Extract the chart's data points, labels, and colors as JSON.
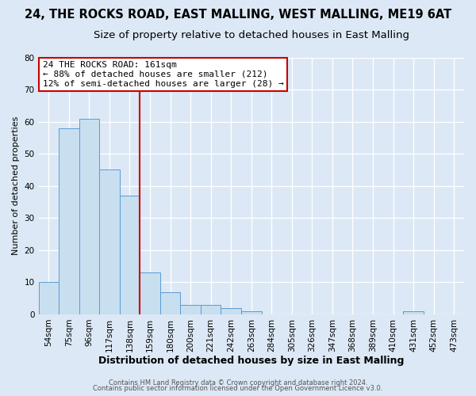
{
  "title": "24, THE ROCKS ROAD, EAST MALLING, WEST MALLING, ME19 6AT",
  "subtitle": "Size of property relative to detached houses in East Malling",
  "xlabel": "Distribution of detached houses by size in East Malling",
  "ylabel": "Number of detached properties",
  "footnote1": "Contains HM Land Registry data © Crown copyright and database right 2024.",
  "footnote2": "Contains public sector information licensed under the Open Government Licence v3.0.",
  "bin_labels": [
    "54sqm",
    "75sqm",
    "96sqm",
    "117sqm",
    "138sqm",
    "159sqm",
    "180sqm",
    "200sqm",
    "221sqm",
    "242sqm",
    "263sqm",
    "284sqm",
    "305sqm",
    "326sqm",
    "347sqm",
    "368sqm",
    "389sqm",
    "410sqm",
    "431sqm",
    "452sqm",
    "473sqm"
  ],
  "bar_heights": [
    10,
    58,
    61,
    45,
    37,
    13,
    7,
    3,
    3,
    2,
    1,
    0,
    0,
    0,
    0,
    0,
    0,
    0,
    1,
    0,
    0
  ],
  "bar_color": "#c8dff0",
  "bar_edge_color": "#5b9bd5",
  "vline_color": "#cc0000",
  "annotation_text": "24 THE ROCKS ROAD: 161sqm\n← 88% of detached houses are smaller (212)\n12% of semi-detached houses are larger (28) →",
  "ylim": [
    0,
    80
  ],
  "yticks": [
    0,
    10,
    20,
    30,
    40,
    50,
    60,
    70,
    80
  ],
  "bg_color": "#dce8f5",
  "plot_bg_color": "#dce8f5",
  "grid_color": "white",
  "title_fontsize": 10.5,
  "subtitle_fontsize": 9.5,
  "xlabel_fontsize": 9,
  "ylabel_fontsize": 8,
  "annotation_fontsize": 8,
  "tick_fontsize": 7.5,
  "footnote_fontsize": 6
}
